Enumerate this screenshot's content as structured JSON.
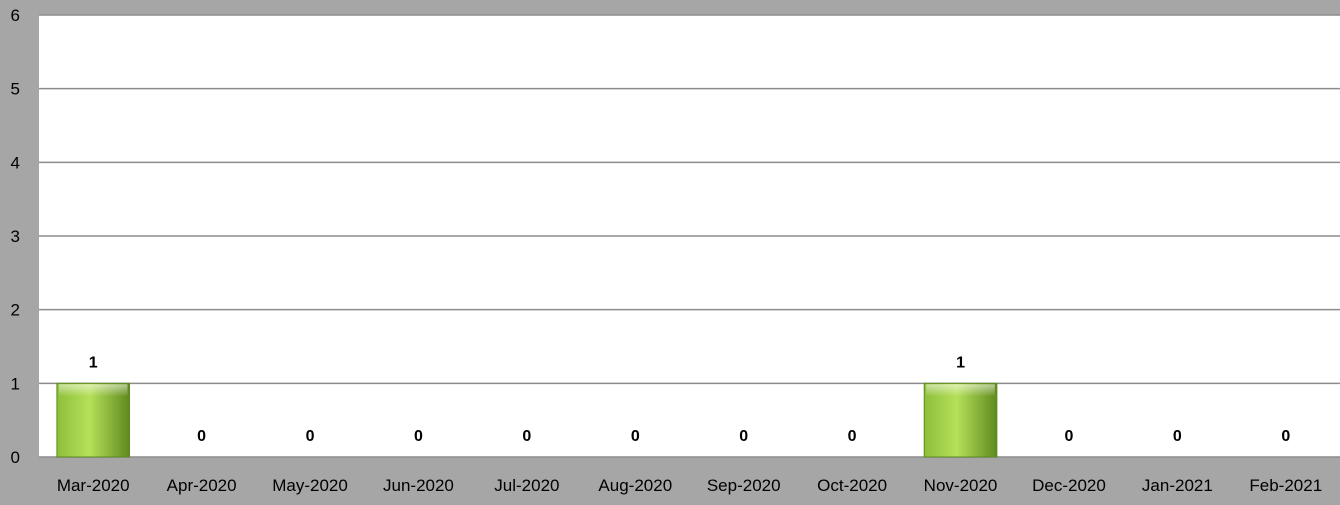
{
  "colors": {
    "page_background": "#a6a6a6",
    "plot_background": "#ffffff",
    "gridline": "#8c8c8c",
    "bar_light": "#b5e05a",
    "bar_mid": "#8dbf3a",
    "bar_dark": "#5f8a1f"
  },
  "chart_data": {
    "type": "bar",
    "title": "",
    "xlabel": "",
    "ylabel": "",
    "categories": [
      "Mar-2020",
      "Apr-2020",
      "May-2020",
      "Jun-2020",
      "Jul-2020",
      "Aug-2020",
      "Sep-2020",
      "Oct-2020",
      "Nov-2020",
      "Dec-2020",
      "Jan-2021",
      "Feb-2021"
    ],
    "values": [
      1,
      0,
      0,
      0,
      0,
      0,
      0,
      0,
      1,
      0,
      0,
      0
    ],
    "ylim": [
      0,
      6
    ],
    "yticks": [
      0,
      1,
      2,
      3,
      4,
      5,
      6
    ],
    "grid": true,
    "legend": "none",
    "data_labels": true
  }
}
